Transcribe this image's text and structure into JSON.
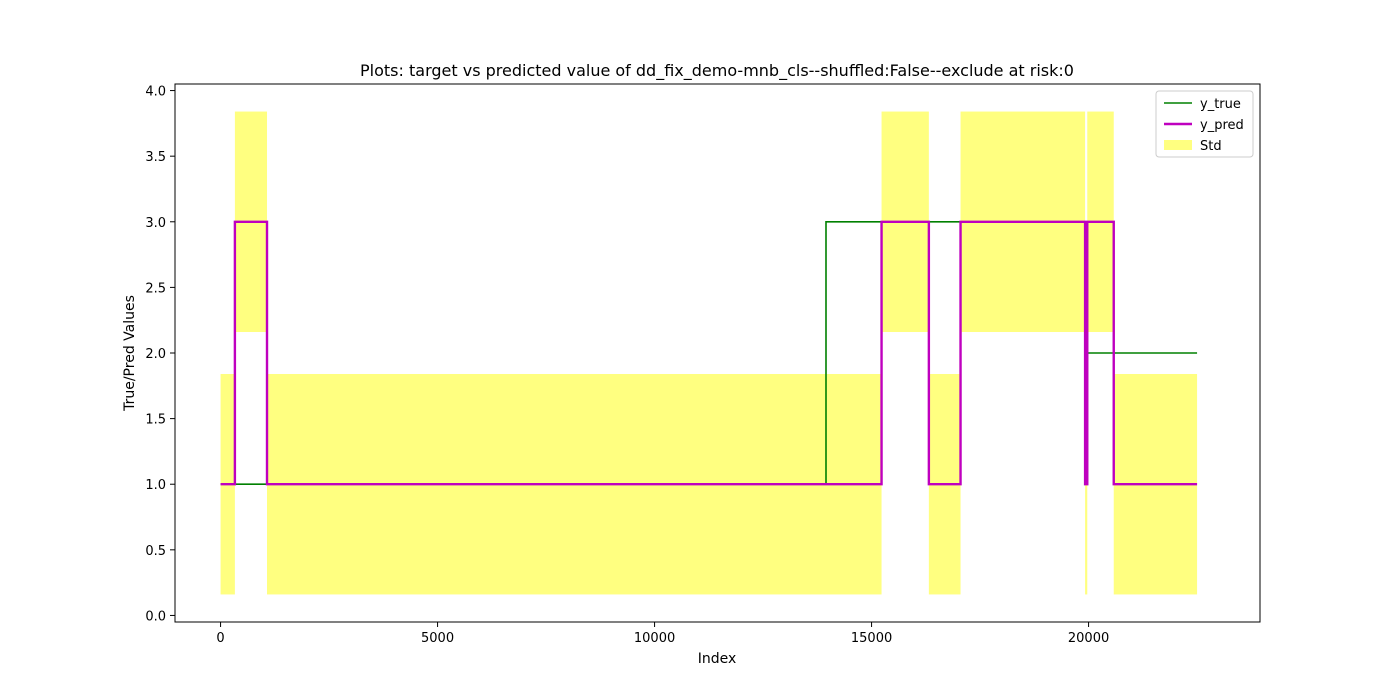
{
  "chart_data": {
    "type": "line",
    "title": "Plots: target vs predicted value of dd_fix_demo-mnb_cls--shuffled:False--exclude at risk:0",
    "xlabel": "Index",
    "ylabel": "True/Pred Values",
    "xlim": [
      -1050,
      23950
    ],
    "ylim": [
      -0.05,
      4.05
    ],
    "x_ticks": [
      0,
      5000,
      10000,
      15000,
      20000
    ],
    "x_tick_labels": [
      "0",
      "5000",
      "10000",
      "15000",
      "20000"
    ],
    "y_ticks": [
      0.0,
      0.5,
      1.0,
      1.5,
      2.0,
      2.5,
      3.0,
      3.5,
      4.0
    ],
    "y_tick_labels": [
      "0.0",
      "0.5",
      "1.0",
      "1.5",
      "2.0",
      "2.5",
      "3.0",
      "3.5",
      "4.0"
    ],
    "grid": false,
    "legend_position": "top-right",
    "colors": {
      "y_true": "#008000",
      "y_pred": "#bf00bf",
      "std": "#ffff80"
    },
    "series": [
      {
        "name": "y_true",
        "x": [
          0,
          13950,
          13950,
          19920,
          19920,
          22500
        ],
        "y": [
          1,
          1,
          3,
          3,
          2,
          2
        ]
      },
      {
        "name": "y_pred",
        "x": [
          0,
          330,
          330,
          1070,
          1070,
          15230,
          15230,
          16320,
          16320,
          17050,
          17050,
          19920,
          19920,
          19970,
          19970,
          20580,
          20580,
          22500
        ],
        "y": [
          1,
          1,
          3,
          3,
          1,
          1,
          3,
          3,
          1,
          1,
          3,
          3,
          1,
          1,
          3,
          3,
          1,
          1
        ]
      }
    ],
    "std_band": {
      "name": "Std",
      "segments": [
        {
          "x0": 0,
          "x1": 330,
          "low": 0.16,
          "high": 1.84
        },
        {
          "x0": 330,
          "x1": 1070,
          "low": 2.16,
          "high": 3.84
        },
        {
          "x0": 1070,
          "x1": 15230,
          "low": 0.16,
          "high": 1.84
        },
        {
          "x0": 15230,
          "x1": 16320,
          "low": 2.16,
          "high": 3.84
        },
        {
          "x0": 16320,
          "x1": 17050,
          "low": 0.16,
          "high": 1.84
        },
        {
          "x0": 17050,
          "x1": 19920,
          "low": 2.16,
          "high": 3.84
        },
        {
          "x0": 19920,
          "x1": 19970,
          "low": 0.16,
          "high": 1.84
        },
        {
          "x0": 19970,
          "x1": 20580,
          "low": 2.16,
          "high": 3.84
        },
        {
          "x0": 20580,
          "x1": 22500,
          "low": 0.16,
          "high": 1.84
        }
      ]
    },
    "legend": [
      "y_true",
      "y_pred",
      "Std"
    ]
  }
}
